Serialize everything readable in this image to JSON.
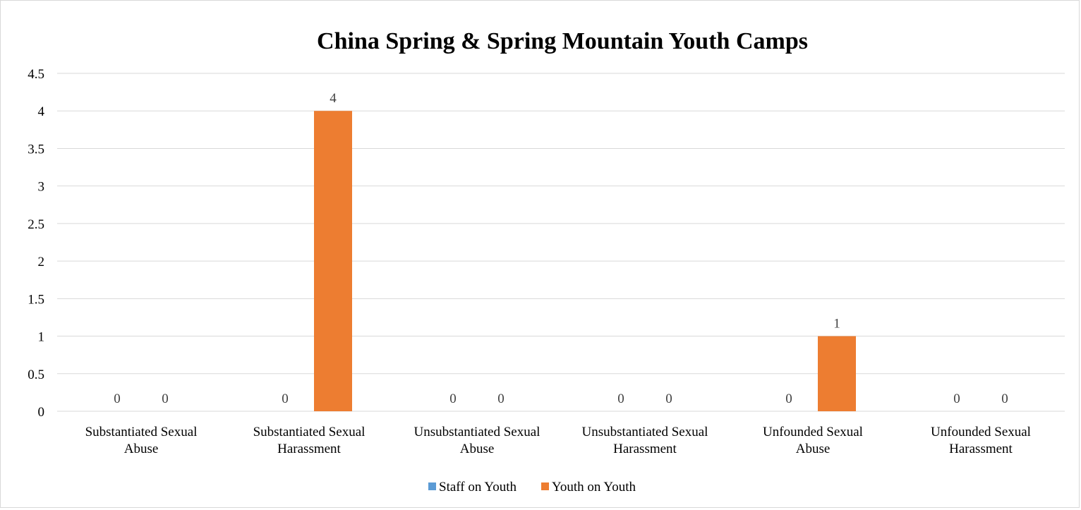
{
  "chart_data": {
    "type": "bar",
    "title": "China Spring & Spring Mountain Youth Camps",
    "xlabel": "",
    "ylabel": "",
    "categories": [
      [
        "Substantiated Sexual",
        "Abuse"
      ],
      [
        "Substantiated Sexual",
        "Harassment"
      ],
      [
        "Unsubstantiated Sexual",
        "Abuse"
      ],
      [
        "Unsubstantiated Sexual",
        "Harassment"
      ],
      [
        "Unfounded Sexual",
        "Abuse"
      ],
      [
        "Unfounded Sexual",
        "Harassment"
      ]
    ],
    "series": [
      {
        "name": "Staff on Youth",
        "color": "#5b9bd5",
        "values": [
          0,
          0,
          0,
          0,
          0,
          0
        ]
      },
      {
        "name": "Youth on Youth",
        "color": "#ed7d31",
        "values": [
          0,
          4,
          0,
          0,
          1,
          0
        ]
      }
    ],
    "ylim": [
      0,
      4.5
    ],
    "yticks": [
      "0",
      "0.5",
      "1",
      "1.5",
      "2",
      "2.5",
      "3",
      "3.5",
      "4",
      "4.5"
    ],
    "grid": true,
    "legend_position": "bottom",
    "data_labels": true
  }
}
